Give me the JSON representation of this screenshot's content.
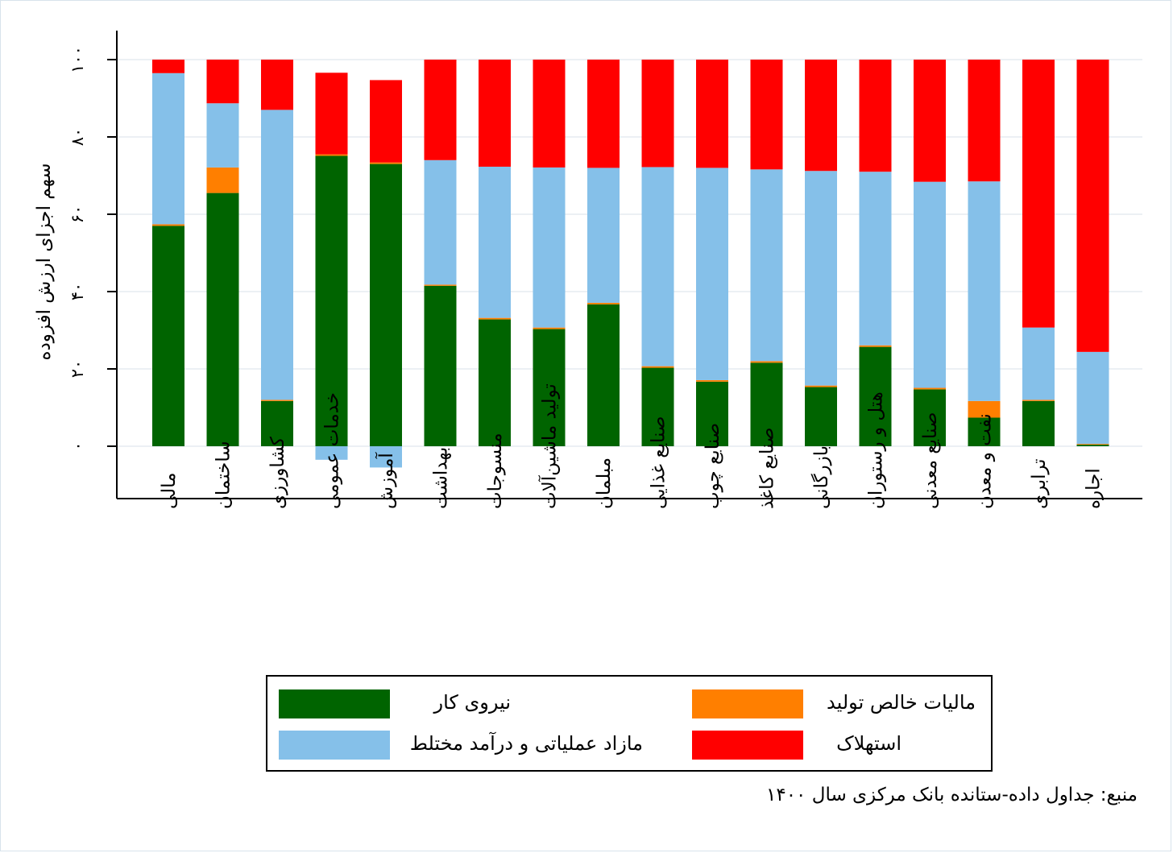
{
  "chart_data": {
    "type": "bar",
    "stacked": true,
    "ylabel": "سهم اجزای ارزش افزوده",
    "ylim": [
      -7,
      107
    ],
    "yticks": [
      0,
      20,
      40,
      60,
      80,
      100
    ],
    "ytick_labels": [
      "۰",
      "۲۰",
      "۴۰",
      "۶۰",
      "۸۰",
      "۱۰۰"
    ],
    "grid": true,
    "categories": [
      "مالی",
      "ساختمان",
      "کشاورزی",
      "خدمات عمومی",
      "آموزش",
      "بهداشت",
      "منسوجات",
      "تولید ماشین‌آلات",
      "مبلمان",
      "صنایع غذایی",
      "صنایع چوب",
      "صنایع کاغذ",
      "بازرگانی",
      "هتل و رستوران",
      "صنایع معدنی",
      "نفت و معدن",
      "ترابری",
      "اجاره"
    ],
    "series": [
      {
        "name": "نیروی کار",
        "color": "#006400",
        "values": [
          57,
          65.5,
          11.7,
          75.1,
          73,
          41.5,
          32.8,
          30.3,
          36.7,
          20.3,
          16.7,
          21.6,
          15.3,
          25.7,
          14.7,
          7.4,
          11.7,
          0.4
        ]
      },
      {
        "name": "مالیات خالص تولید",
        "color": "#ff7f00",
        "values": [
          0.4,
          6.6,
          0.3,
          0.4,
          0.4,
          0.3,
          0.4,
          0.4,
          0.4,
          0.4,
          0.4,
          0.4,
          0.4,
          0.4,
          0.4,
          4.3,
          0.3,
          0.2
        ]
      },
      {
        "name": "مازاد عملیاتی و درآمد مختلط",
        "color": "#85c0e9",
        "values": [
          39.1,
          16.6,
          75,
          -3.5,
          -5.5,
          32.2,
          39.1,
          41.4,
          34.9,
          51.5,
          54.9,
          49.6,
          55.5,
          44.9,
          53.3,
          56.8,
          18.7,
          23.8
        ]
      },
      {
        "name": "استهلاک",
        "color": "#ff0000",
        "values": [
          3.5,
          11.3,
          13,
          21.1,
          21.3,
          26,
          27.7,
          27.9,
          28,
          27.8,
          28,
          28.4,
          28.8,
          29,
          31.6,
          31.5,
          69.3,
          75.6
        ]
      }
    ],
    "legend_position": "bottom"
  },
  "legend": {
    "items": [
      {
        "label": "نیروی کار",
        "color": "#006400"
      },
      {
        "label": "مالیات خالص تولید",
        "color": "#ff7f00"
      },
      {
        "label": "مازاد عملیاتی و درآمد مختلط",
        "color": "#85c0e9"
      },
      {
        "label": "استهلاک",
        "color": "#ff0000"
      }
    ]
  },
  "source_note": "منبع: جداول داده-ستانده بانک مرکزی سال ۱۴۰۰"
}
